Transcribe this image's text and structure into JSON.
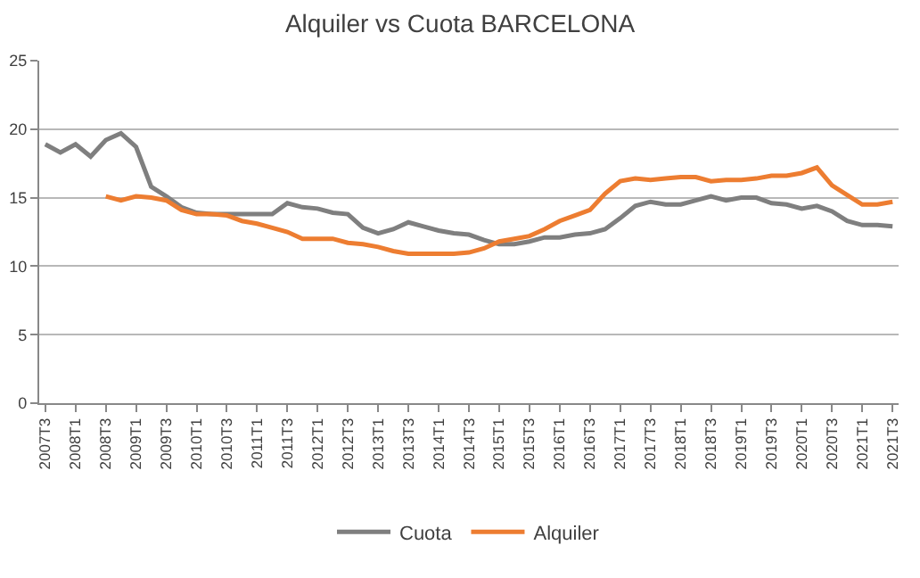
{
  "chart_data": {
    "type": "line",
    "title": "Alquiler vs Cuota BARCELONA",
    "categories": [
      "2007T3",
      null,
      "2008T1",
      null,
      "2008T3",
      null,
      "2009T1",
      null,
      "2009T3",
      null,
      "2010T1",
      null,
      "2010T3",
      null,
      "2011T1",
      null,
      "2011T3",
      null,
      "2012T1",
      null,
      "2012T3",
      null,
      "2013T1",
      null,
      "2013T3",
      null,
      "2014T1",
      null,
      "2014T3",
      null,
      "2015T1",
      null,
      "2015T3",
      null,
      "2016T1",
      null,
      "2016T3",
      null,
      "2017T1",
      null,
      "2017T3",
      null,
      "2018T1",
      null,
      "2018T3",
      null,
      "2019T1",
      null,
      "2019T3",
      null,
      "2020T1",
      null,
      "2020T3",
      null,
      "2021T1",
      null,
      "2021T3"
    ],
    "series": [
      {
        "name": "Cuota",
        "color": "#7f7f7f",
        "values": [
          18.9,
          18.3,
          18.9,
          18.0,
          19.2,
          19.7,
          18.7,
          15.8,
          15.1,
          14.3,
          13.9,
          13.8,
          13.8,
          13.8,
          13.8,
          13.8,
          14.6,
          14.3,
          14.2,
          13.9,
          13.8,
          12.8,
          12.4,
          12.7,
          13.2,
          12.9,
          12.6,
          12.4,
          12.3,
          11.9,
          11.6,
          11.6,
          11.8,
          12.1,
          12.1,
          12.3,
          12.4,
          12.7,
          13.5,
          14.4,
          14.7,
          14.5,
          14.5,
          14.8,
          15.1,
          14.8,
          15.0,
          15.0,
          14.6,
          14.5,
          14.2,
          14.4,
          14.0,
          13.3,
          13.0,
          13.0,
          12.9
        ]
      },
      {
        "name": "Alquiler",
        "color": "#ed7d31",
        "values": [
          null,
          null,
          null,
          null,
          15.1,
          14.8,
          15.1,
          15.0,
          14.8,
          14.1,
          13.8,
          13.8,
          13.7,
          13.3,
          13.1,
          12.8,
          12.5,
          12.0,
          12.0,
          12.0,
          11.7,
          11.6,
          11.4,
          11.1,
          10.9,
          10.9,
          10.9,
          10.9,
          11.0,
          11.3,
          11.8,
          12.0,
          12.2,
          12.7,
          13.3,
          13.7,
          14.1,
          15.3,
          16.2,
          16.4,
          16.3,
          16.4,
          16.5,
          16.5,
          16.2,
          16.3,
          16.3,
          16.4,
          16.6,
          16.6,
          16.8,
          17.2,
          15.9,
          15.2,
          14.5,
          14.5,
          14.7
        ]
      }
    ],
    "ylim": [
      0,
      25
    ],
    "yticks": [
      0,
      5,
      10,
      15,
      20,
      25
    ],
    "grid": "y",
    "legend": "bottom",
    "marker": "none",
    "line_style": "solid"
  }
}
